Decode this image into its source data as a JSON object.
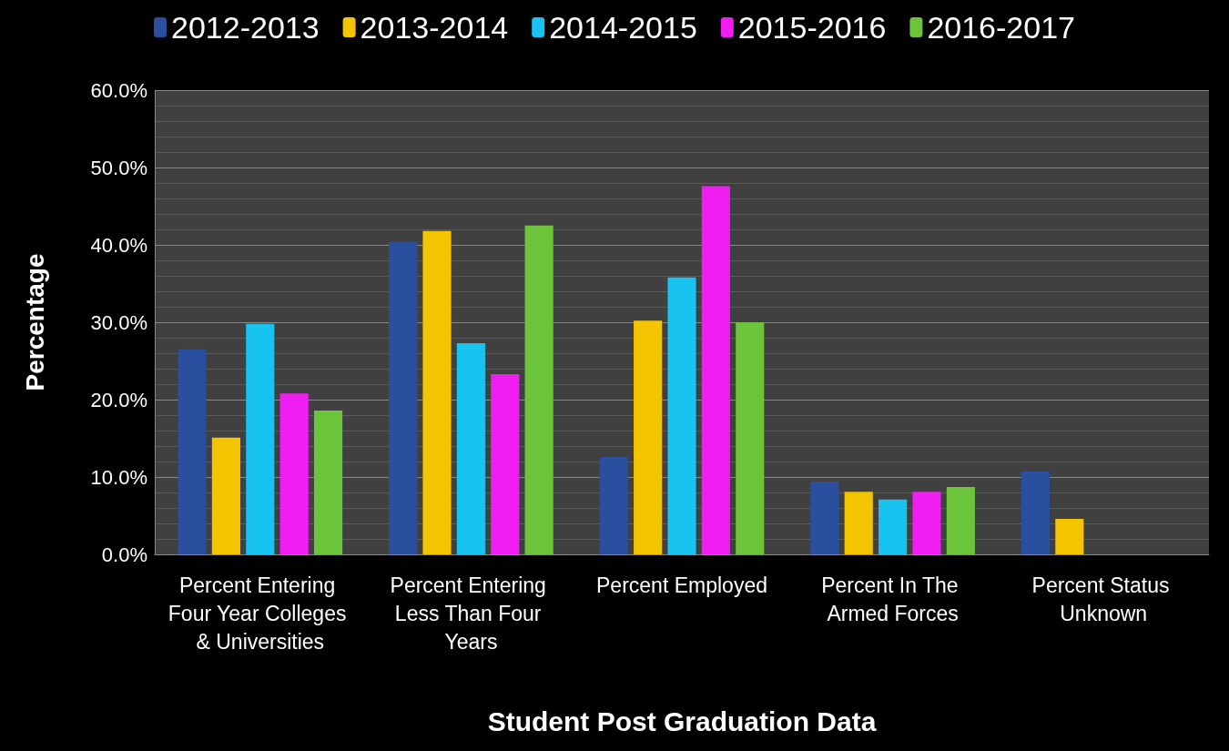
{
  "chart_data": {
    "type": "bar",
    "xlabel": "Student Post Graduation Data",
    "ylabel": "Percentage",
    "categories": [
      "Percent Entering Four Year Colleges & Universities",
      "Percent Entering Less Than Four Years",
      "Percent Employed",
      "Percent In The Armed Forces",
      "Percent Status Unknown"
    ],
    "series": [
      {
        "name": "2012-2013",
        "color": "#2a4f9e",
        "values": [
          26.5,
          40.4,
          12.6,
          9.4,
          10.7
        ]
      },
      {
        "name": "2013-2014",
        "color": "#f5c400",
        "values": [
          15.1,
          41.8,
          30.2,
          8.1,
          4.6
        ]
      },
      {
        "name": "2014-2015",
        "color": "#19c3f0",
        "values": [
          29.8,
          27.3,
          35.8,
          7.1,
          null
        ]
      },
      {
        "name": "2015-2016",
        "color": "#f01ef0",
        "values": [
          20.8,
          23.3,
          47.6,
          8.1,
          null
        ]
      },
      {
        "name": "2016-2017",
        "color": "#6cc43a",
        "values": [
          18.6,
          42.5,
          30.0,
          8.7,
          null
        ]
      }
    ],
    "ylim": [
      0,
      60
    ],
    "yticks": [
      {
        "value": 0,
        "label": "0.0%"
      },
      {
        "value": 10,
        "label": "10.0%"
      },
      {
        "value": 20,
        "label": "20.0%"
      },
      {
        "value": 30,
        "label": "30.0%"
      },
      {
        "value": 40,
        "label": "40.0%"
      },
      {
        "value": 50,
        "label": "50.0%"
      },
      {
        "value": 60,
        "label": "60.0%"
      }
    ],
    "grid": true,
    "legend": "top"
  }
}
